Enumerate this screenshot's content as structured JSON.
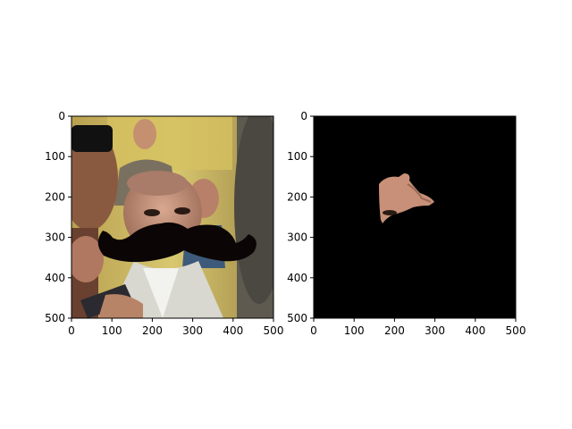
{
  "figure": {
    "background": "#ffffff",
    "axis_color": "#000000"
  },
  "chart_data": [
    {
      "type": "image",
      "panel": "left",
      "content": "photo of a crowd; the central man's face has a large black mustache overlay",
      "xlim": [
        0,
        500
      ],
      "ylim": [
        500,
        0
      ],
      "xticks": [
        0,
        100,
        200,
        300,
        400,
        500
      ],
      "yticks": [
        0,
        100,
        200,
        300,
        400,
        500
      ],
      "xtick_labels": [
        "0",
        "100",
        "200",
        "300",
        "400",
        "500"
      ],
      "ytick_labels": [
        "0",
        "100",
        "200",
        "300",
        "400",
        "500"
      ],
      "grid": false,
      "overlay_color": "#0b0505"
    },
    {
      "type": "image",
      "panel": "right",
      "content": "black mask image showing only a cut-out skin region (eye and nose) around x 160–300, y 140–270",
      "xlim": [
        0,
        500
      ],
      "ylim": [
        500,
        0
      ],
      "xticks": [
        0,
        100,
        200,
        300,
        400,
        500
      ],
      "yticks": [
        0,
        100,
        200,
        300,
        400,
        500
      ],
      "xtick_labels": [
        "0",
        "100",
        "200",
        "300",
        "400",
        "500"
      ],
      "ytick_labels": [
        "0",
        "100",
        "200",
        "300",
        "400",
        "500"
      ],
      "grid": false,
      "background_color": "#000000"
    }
  ]
}
